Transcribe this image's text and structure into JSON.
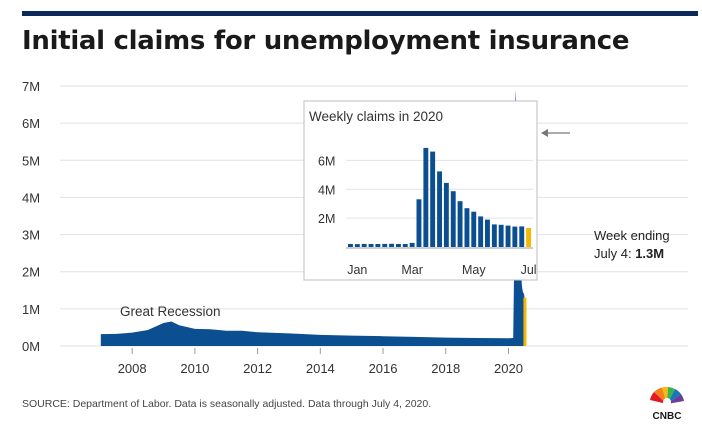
{
  "header": {
    "title": "Initial claims for unemployment insurance"
  },
  "annotations": {
    "recession": "Great Recession",
    "callout_line1": "Week ending",
    "callout_prefix": "July 4:",
    "callout_value": "1.3M"
  },
  "footer": {
    "source": "SOURCE: Department of Labor. Data is seasonally adjusted. Data through July 4, 2020.",
    "logo": "CNBC"
  },
  "colors": {
    "bar": "#0b4f91",
    "highlight": "#f5b800",
    "rule": "#0b2a5b"
  },
  "chart_data": [
    {
      "type": "area",
      "ylim": [
        0,
        7000000
      ],
      "xlim": [
        2006.4,
        2022.6
      ],
      "ytick_labels": [
        "0M",
        "1M",
        "2M",
        "3M",
        "4M",
        "5M",
        "6M",
        "7M"
      ],
      "yticks": [
        0,
        1000000,
        2000000,
        3000000,
        4000000,
        5000000,
        6000000,
        7000000
      ],
      "xtick_labels": [
        "2008",
        "2010",
        "2012",
        "2014",
        "2016",
        "2018",
        "2020"
      ],
      "xticks": [
        2008,
        2010,
        2012,
        2014,
        2016,
        2018,
        2020
      ],
      "grid": true,
      "series": [
        {
          "x": [
            2007.0,
            2007.5,
            2008.0,
            2008.5,
            2009.0,
            2009.25,
            2009.5,
            2010.0,
            2010.5,
            2011.0,
            2011.5,
            2012.0,
            2013.0,
            2014.0,
            2015.0,
            2016.0,
            2017.0,
            2018.0,
            2019.0,
            2020.0,
            2020.15,
            2020.2,
            2020.22,
            2020.24,
            2020.27,
            2020.29,
            2020.31,
            2020.33,
            2020.35,
            2020.37,
            2020.39,
            2020.41,
            2020.43,
            2020.45,
            2020.47,
            2020.49,
            2020.51
          ],
          "values": [
            320000,
            325000,
            360000,
            430000,
            620000,
            660000,
            560000,
            460000,
            450000,
            410000,
            410000,
            370000,
            340000,
            300000,
            280000,
            265000,
            245000,
            225000,
            215000,
            211000,
            215000,
            3300000,
            6900000,
            6600000,
            5200000,
            4400000,
            3800000,
            3200000,
            2700000,
            2400000,
            2100000,
            1900000,
            1600000,
            1500000,
            1400000,
            1450000,
            1300000
          ]
        }
      ],
      "highlight": {
        "x": 2020.51,
        "value": 1300000
      }
    },
    {
      "type": "bar",
      "title": "Weekly claims in 2020",
      "ylim": [
        0,
        7000000
      ],
      "ytick_labels": [
        "2M",
        "4M",
        "6M"
      ],
      "yticks": [
        2000000,
        4000000,
        6000000
      ],
      "xtick_labels": [
        "Jan",
        "Mar",
        "May",
        "Jul"
      ],
      "xtick_index": [
        1,
        9,
        18,
        26
      ],
      "grid": true,
      "values": [
        211000,
        204000,
        215000,
        211000,
        210000,
        216000,
        219000,
        211000,
        211000,
        282000,
        3307000,
        6867000,
        6615000,
        5237000,
        4442000,
        3867000,
        3176000,
        2687000,
        2446000,
        2123000,
        1897000,
        1566000,
        1540000,
        1482000,
        1413000,
        1427000,
        1314000
      ],
      "highlight_index": 26
    }
  ]
}
